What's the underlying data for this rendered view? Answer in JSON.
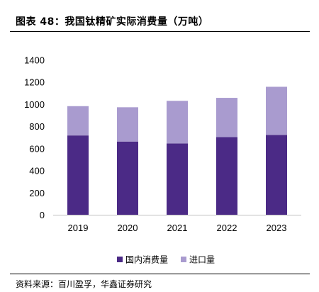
{
  "title": "图表 48：我国钛精矿实际消费量（万吨）",
  "source": "资料来源：百川盈孚，华鑫证券研究",
  "colors": {
    "domestic": "#4b2a86",
    "import": "#a99bcf",
    "axis": "#bfbfbf"
  },
  "chart_data": {
    "type": "bar",
    "stacked": true,
    "categories": [
      "2019",
      "2020",
      "2021",
      "2022",
      "2023"
    ],
    "series": [
      {
        "name": "国内消费量",
        "values": [
          720,
          665,
          648,
          705,
          725
        ]
      },
      {
        "name": "进口量",
        "values": [
          265,
          310,
          385,
          355,
          435
        ]
      }
    ],
    "ylim": [
      0,
      1400
    ],
    "yticks": [
      0,
      200,
      400,
      600,
      800,
      1000,
      1200,
      1400
    ],
    "grid": false,
    "legend": "bottom-center"
  }
}
